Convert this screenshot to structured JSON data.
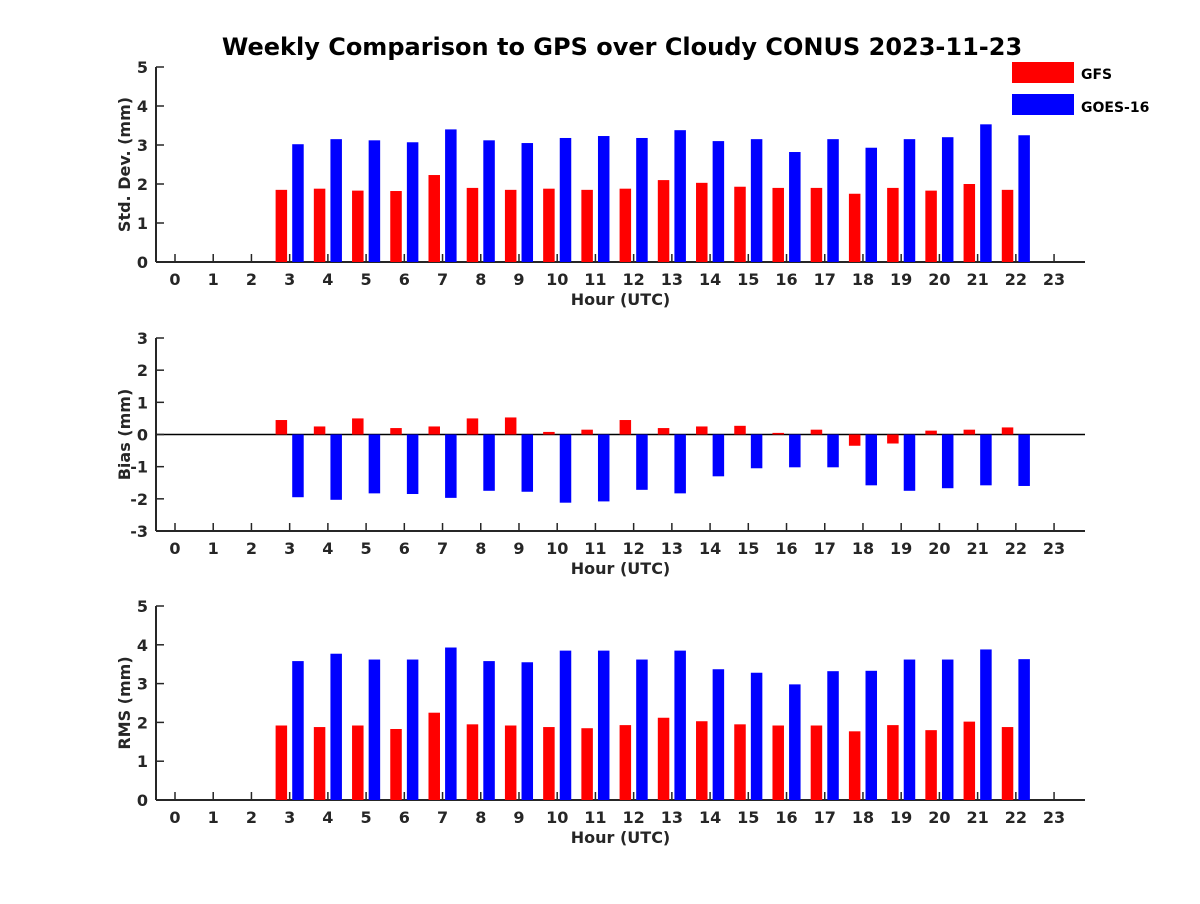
{
  "title": "Weekly Comparison to GPS over Cloudy CONUS 2023-11-23",
  "legend": {
    "placement": "top-right",
    "entries": [
      {
        "label": "GFS",
        "color": "#ff0000"
      },
      {
        "label": "GOES-16",
        "color": "#0000ff"
      }
    ]
  },
  "chart_data": [
    {
      "type": "bar",
      "xlabel": "Hour (UTC)",
      "ylabel": "Std. Dev. (mm)",
      "ylim": [
        0,
        5
      ],
      "yticks": [
        0,
        1,
        2,
        3,
        4,
        5
      ],
      "categories": [
        "0",
        "1",
        "2",
        "3",
        "4",
        "5",
        "6",
        "7",
        "8",
        "9",
        "10",
        "11",
        "12",
        "13",
        "14",
        "15",
        "16",
        "17",
        "18",
        "19",
        "20",
        "21",
        "22",
        "23"
      ],
      "series": [
        {
          "name": "GFS",
          "color": "#ff0000",
          "values": [
            null,
            null,
            null,
            1.85,
            1.88,
            1.83,
            1.82,
            2.23,
            1.9,
            1.85,
            1.88,
            1.85,
            1.88,
            2.1,
            2.03,
            1.93,
            1.9,
            1.9,
            1.75,
            1.9,
            1.83,
            2.0,
            1.85,
            null
          ]
        },
        {
          "name": "GOES-16",
          "color": "#0000ff",
          "values": [
            null,
            null,
            null,
            3.02,
            3.15,
            3.12,
            3.07,
            3.4,
            3.12,
            3.05,
            3.18,
            3.23,
            3.18,
            3.38,
            3.1,
            3.15,
            2.82,
            3.15,
            2.93,
            3.15,
            3.2,
            3.53,
            3.25,
            null
          ]
        }
      ]
    },
    {
      "type": "bar",
      "xlabel": "Hour (UTC)",
      "ylabel": "Bias (mm)",
      "ylim": [
        -3,
        3
      ],
      "yticks": [
        -3,
        -2,
        -1,
        0,
        1,
        2,
        3
      ],
      "categories": [
        "0",
        "1",
        "2",
        "3",
        "4",
        "5",
        "6",
        "7",
        "8",
        "9",
        "10",
        "11",
        "12",
        "13",
        "14",
        "15",
        "16",
        "17",
        "18",
        "19",
        "20",
        "21",
        "22",
        "23"
      ],
      "series": [
        {
          "name": "GFS",
          "color": "#ff0000",
          "values": [
            null,
            null,
            null,
            0.45,
            0.25,
            0.5,
            0.2,
            0.25,
            0.5,
            0.53,
            0.08,
            0.15,
            0.45,
            0.2,
            0.25,
            0.27,
            0.05,
            0.15,
            -0.35,
            -0.28,
            0.12,
            0.15,
            0.22,
            null
          ]
        },
        {
          "name": "GOES-16",
          "color": "#0000ff",
          "values": [
            null,
            null,
            null,
            -1.95,
            -2.03,
            -1.83,
            -1.85,
            -1.97,
            -1.75,
            -1.78,
            -2.12,
            -2.08,
            -1.72,
            -1.83,
            -1.3,
            -1.05,
            -1.02,
            -1.02,
            -1.58,
            -1.75,
            -1.67,
            -1.58,
            -1.6,
            null
          ]
        }
      ]
    },
    {
      "type": "bar",
      "xlabel": "Hour (UTC)",
      "ylabel": "RMS (mm)",
      "ylim": [
        0,
        5
      ],
      "yticks": [
        0,
        1,
        2,
        3,
        4,
        5
      ],
      "categories": [
        "0",
        "1",
        "2",
        "3",
        "4",
        "5",
        "6",
        "7",
        "8",
        "9",
        "10",
        "11",
        "12",
        "13",
        "14",
        "15",
        "16",
        "17",
        "18",
        "19",
        "20",
        "21",
        "22",
        "23"
      ],
      "series": [
        {
          "name": "GFS",
          "color": "#ff0000",
          "values": [
            null,
            null,
            null,
            1.92,
            1.88,
            1.92,
            1.83,
            2.25,
            1.95,
            1.92,
            1.88,
            1.85,
            1.93,
            2.12,
            2.03,
            1.95,
            1.92,
            1.92,
            1.77,
            1.93,
            1.8,
            2.02,
            1.88,
            null
          ]
        },
        {
          "name": "GOES-16",
          "color": "#0000ff",
          "values": [
            null,
            null,
            null,
            3.58,
            3.77,
            3.62,
            3.62,
            3.93,
            3.58,
            3.55,
            3.85,
            3.85,
            3.62,
            3.85,
            3.37,
            3.28,
            2.98,
            3.32,
            3.33,
            3.62,
            3.62,
            3.88,
            3.63,
            null
          ]
        }
      ]
    }
  ]
}
